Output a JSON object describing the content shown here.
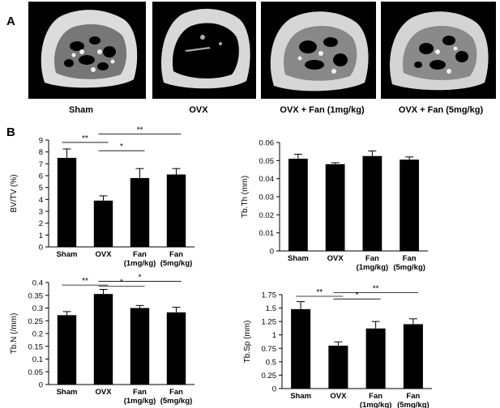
{
  "panels": {
    "a": "A",
    "b": "B"
  },
  "micro_ct": {
    "labels": [
      "Sham",
      "OVX",
      "OVX + Fan  (1mg/kg)",
      "OVX + Fan   (5mg/kg)"
    ]
  },
  "chart_data": [
    {
      "type": "bar",
      "ylabel": "BV/TV (%)",
      "categories": [
        [
          "Sham"
        ],
        [
          "OVX"
        ],
        [
          "Fan",
          "(1mg/kg)"
        ],
        [
          "Fan",
          "(5mg/kg)"
        ]
      ],
      "values": [
        7.5,
        3.9,
        5.8,
        6.1
      ],
      "errors": [
        0.75,
        0.4,
        0.8,
        0.5
      ],
      "ylim": [
        0,
        9
      ],
      "yticks": [
        0,
        1,
        2,
        3,
        4,
        5,
        6,
        7,
        8,
        9
      ],
      "yticklabels": [
        "0",
        "1",
        "2",
        "3",
        "4",
        "5",
        "6",
        "7",
        "8",
        "9"
      ],
      "significance": [
        {
          "from": 0,
          "to": 1,
          "label": "**",
          "y": 8.8
        },
        {
          "from": 1,
          "to": 2,
          "label": "*",
          "y": 8.1
        },
        {
          "from": 1,
          "to": 3,
          "label": "**",
          "y": 9.5
        }
      ]
    },
    {
      "type": "bar",
      "ylabel": "Tb.Th (mm)",
      "categories": [
        [
          "Sham"
        ],
        [
          "OVX"
        ],
        [
          "Fan",
          "(1mg/kg)"
        ],
        [
          "Fan",
          "(5mg/kg)"
        ]
      ],
      "values": [
        0.051,
        0.048,
        0.0525,
        0.0505
      ],
      "errors": [
        0.0025,
        0.0008,
        0.0028,
        0.0015
      ],
      "ylim": [
        0,
        0.06
      ],
      "yticks": [
        0,
        0.01,
        0.02,
        0.03,
        0.04,
        0.05,
        0.06
      ],
      "yticklabels": [
        "0",
        "0.01",
        "0.02",
        "0.03",
        "0.04",
        "0.05",
        "0.06"
      ],
      "significance": []
    },
    {
      "type": "bar",
      "ylabel": "Tb.N (/mm)",
      "categories": [
        [
          "Sham"
        ],
        [
          "OVX"
        ],
        [
          "Fan",
          "(1mg/kg)"
        ],
        [
          "Fan",
          "(5mg/kg)"
        ]
      ],
      "values": [
        0.272,
        0.355,
        0.3,
        0.283
      ],
      "errors": [
        0.014,
        0.018,
        0.01,
        0.02
      ],
      "ylim": [
        0,
        0.4
      ],
      "yticks": [
        0,
        0.05,
        0.1,
        0.15,
        0.2,
        0.25,
        0.3,
        0.35,
        0.4
      ],
      "yticklabels": [
        "0",
        "0.05",
        "0.1",
        "0.15",
        "0.2",
        "0.25",
        "0.3",
        "0.35",
        "0.4"
      ],
      "significance": [
        {
          "from": 0,
          "to": 1,
          "label": "**",
          "y": 0.39
        },
        {
          "from": 1,
          "to": 2,
          "label": "*",
          "y": 0.385
        },
        {
          "from": 1,
          "to": 3,
          "label": "*",
          "y": 0.405
        }
      ]
    },
    {
      "type": "bar",
      "ylabel": "Tb.Sp (mm)",
      "categories": [
        [
          "Sham"
        ],
        [
          "OVX"
        ],
        [
          "Fan",
          "(1mg/kg)"
        ],
        [
          "Fan",
          "(5mg/kg)"
        ]
      ],
      "values": [
        1.48,
        0.8,
        1.12,
        1.2
      ],
      "errors": [
        0.14,
        0.07,
        0.13,
        0.1
      ],
      "ylim": [
        0,
        1.75
      ],
      "yticks": [
        0,
        0.25,
        0.5,
        0.75,
        1,
        1.25,
        1.5,
        1.75
      ],
      "yticklabels": [
        "0",
        "0.25",
        "0.5",
        "0.75",
        "1",
        "1.25",
        "1.5",
        "1.75"
      ],
      "significance": [
        {
          "from": 0,
          "to": 1,
          "label": "**",
          "y": 1.72
        },
        {
          "from": 1,
          "to": 2,
          "label": "*",
          "y": 1.67
        },
        {
          "from": 1,
          "to": 3,
          "label": "**",
          "y": 1.79
        }
      ]
    }
  ]
}
